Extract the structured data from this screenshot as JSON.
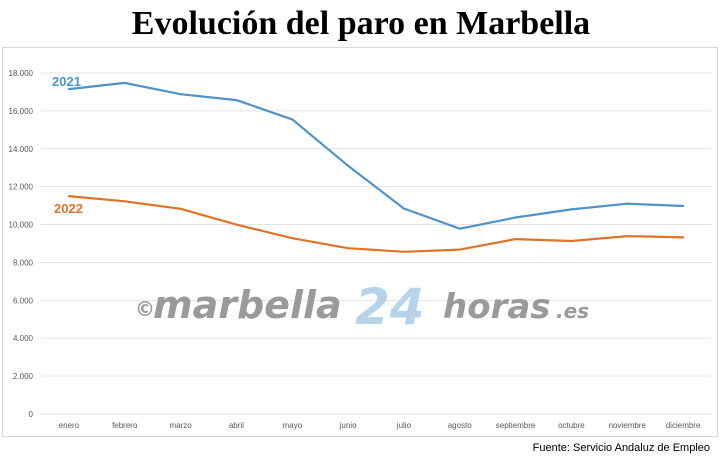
{
  "chart_data": {
    "type": "line",
    "title": "Evolución del paro en Marbella",
    "categories": [
      "enero",
      "febrero",
      "marzo",
      "abril",
      "mayo",
      "junio",
      "julio",
      "agosto",
      "septiembre",
      "octubre",
      "noviembre",
      "diciembre"
    ],
    "series": [
      {
        "name": "2021",
        "color": "#4e94c8",
        "values": [
          17150,
          17480,
          16880,
          16570,
          15550,
          13100,
          10850,
          9780,
          10370,
          10800,
          11100,
          10980
        ]
      },
      {
        "name": "2022",
        "color": "#e07328",
        "values": [
          11500,
          11230,
          10830,
          10000,
          9280,
          8750,
          8560,
          8680,
          9230,
          9130,
          9390,
          9320
        ]
      }
    ],
    "yticks": [
      "0",
      "2.000",
      "4.000",
      "6.000",
      "8.000",
      "10.000",
      "12.000",
      "14.000",
      "16.000",
      "18.000"
    ],
    "ylim": [
      0,
      18000
    ],
    "grid": true,
    "source": "Fuente: Servicio Andaluz de Empleo",
    "watermark": {
      "copyright": "©",
      "part1": "marbella",
      "part2": "24",
      "part3": "horas",
      "part4": ".es"
    }
  }
}
